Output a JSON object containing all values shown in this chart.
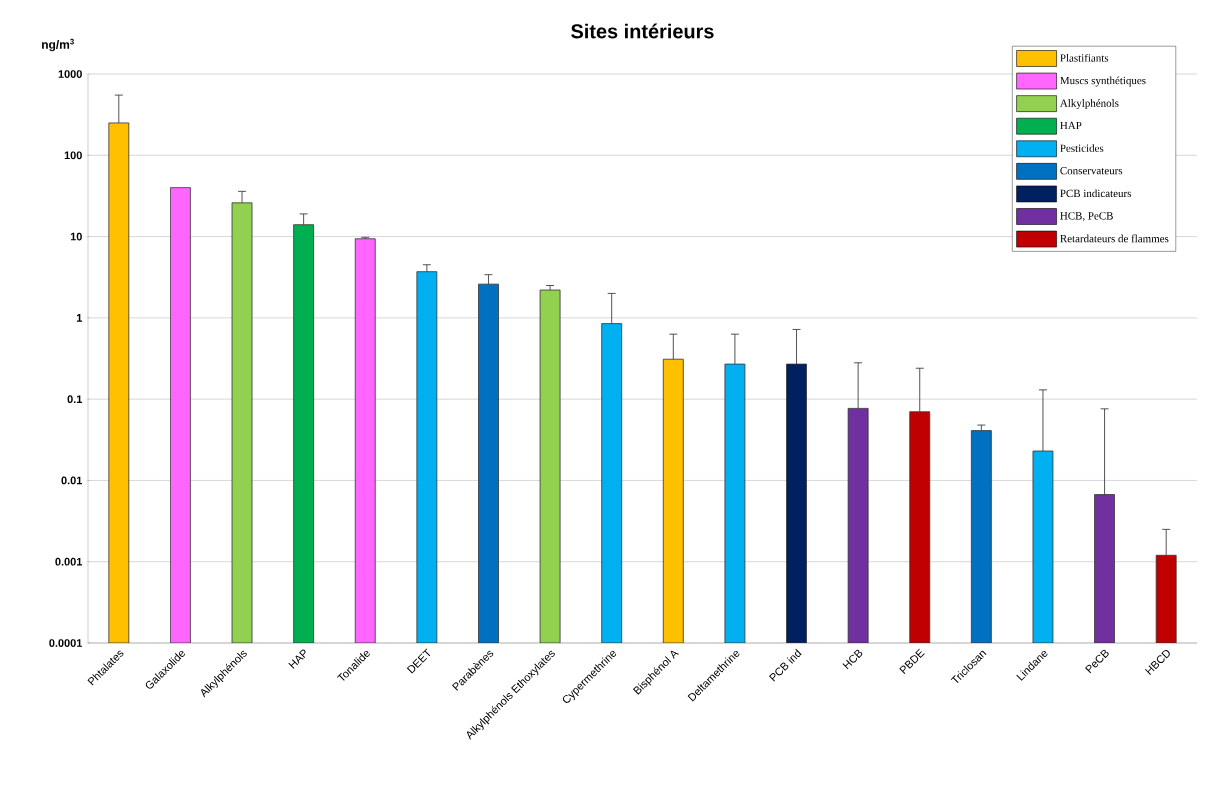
{
  "chart_data": {
    "type": "bar",
    "title": "Sites intérieurs",
    "ylabel": "ng/m$^{3}$",
    "categories": [
      "Phtalates",
      "Galaxolide",
      "Alkylphénols",
      "HAP",
      "Tonalide",
      "DEET",
      "Parabènes",
      "Alkylphénols Ethoxylates",
      "Cypermethrine",
      "Bisphénol A",
      "Deltamethrine",
      "PCB ind",
      "HCB",
      "PBDE",
      "Triclosan",
      "Lindane",
      "PeCB",
      "HBCD"
    ],
    "series": [
      {
        "name": "Plastifiants",
        "color": "#ffc000",
        "values": [
          250,
          null,
          null,
          null,
          null,
          null,
          null,
          null,
          null,
          0.31,
          null,
          null,
          null,
          null,
          null,
          null,
          null,
          null
        ],
        "errors": [
          [
            250,
            550
          ],
          null,
          null,
          null,
          null,
          null,
          null,
          null,
          null,
          [
            0.31,
            0.63
          ],
          null,
          null,
          null,
          null,
          null,
          null,
          null,
          null
        ]
      },
      {
        "name": "Muscs synthétiques",
        "color": "#ff66ff",
        "values": [
          null,
          40,
          null,
          null,
          9.4,
          null,
          null,
          null,
          null,
          null,
          null,
          null,
          null,
          null,
          null,
          null,
          null,
          null
        ],
        "errors": [
          null,
          null,
          null,
          null,
          [
            9.4,
            9.8
          ],
          null,
          null,
          null,
          null,
          null,
          null,
          null,
          null,
          null,
          null,
          null,
          null,
          null
        ]
      },
      {
        "name": "Alkylphénols",
        "color": "#92d050",
        "values": [
          null,
          null,
          26,
          null,
          null,
          null,
          null,
          2.2,
          null,
          null,
          null,
          null,
          null,
          null,
          null,
          null,
          null,
          null
        ],
        "errors": [
          null,
          null,
          [
            26,
            36
          ],
          null,
          null,
          null,
          null,
          [
            2.2,
            2.5
          ],
          null,
          null,
          null,
          null,
          null,
          null,
          null,
          null,
          null,
          null
        ]
      },
      {
        "name": "HAP",
        "color": "#00b050",
        "values": [
          null,
          null,
          null,
          14,
          null,
          null,
          null,
          null,
          null,
          null,
          null,
          null,
          null,
          null,
          null,
          null,
          null,
          null
        ],
        "errors": [
          null,
          null,
          null,
          [
            14,
            19
          ],
          null,
          null,
          null,
          null,
          null,
          null,
          null,
          null,
          null,
          null,
          null,
          null,
          null,
          null
        ]
      },
      {
        "name": "Pesticides",
        "color": "#00b0f0",
        "values": [
          null,
          null,
          null,
          null,
          null,
          3.7,
          null,
          null,
          0.85,
          null,
          0.27,
          null,
          null,
          null,
          null,
          0.023,
          null,
          null
        ],
        "errors": [
          null,
          null,
          null,
          null,
          null,
          [
            3.7,
            4.5
          ],
          null,
          null,
          [
            0.85,
            2.0
          ],
          null,
          [
            0.27,
            0.63
          ],
          null,
          null,
          null,
          null,
          [
            0.023,
            0.13
          ],
          null,
          null
        ]
      },
      {
        "name": "Conservateurs",
        "color": "#0070c0",
        "values": [
          null,
          null,
          null,
          null,
          null,
          null,
          2.6,
          null,
          null,
          null,
          null,
          null,
          null,
          null,
          0.041,
          null,
          null,
          null
        ],
        "errors": [
          null,
          null,
          null,
          null,
          null,
          null,
          [
            2.6,
            3.4
          ],
          null,
          null,
          null,
          null,
          null,
          null,
          null,
          [
            0.041,
            0.048
          ],
          null,
          null,
          null
        ]
      },
      {
        "name": "PCB indicateurs",
        "color": "#002060",
        "values": [
          null,
          null,
          null,
          null,
          null,
          null,
          null,
          null,
          null,
          null,
          null,
          0.27,
          null,
          null,
          null,
          null,
          null,
          null
        ],
        "errors": [
          null,
          null,
          null,
          null,
          null,
          null,
          null,
          null,
          null,
          null,
          null,
          [
            0.27,
            0.72
          ],
          null,
          null,
          null,
          null,
          null,
          null
        ]
      },
      {
        "name": "HCB, PeCB",
        "color": "#7030a0",
        "values": [
          null,
          null,
          null,
          null,
          null,
          null,
          null,
          null,
          null,
          null,
          null,
          null,
          0.077,
          null,
          null,
          null,
          0.0067,
          null
        ],
        "errors": [
          null,
          null,
          null,
          null,
          null,
          null,
          null,
          null,
          null,
          null,
          null,
          null,
          [
            0.077,
            0.28
          ],
          null,
          null,
          null,
          [
            0.0067,
            0.076
          ],
          null
        ]
      },
      {
        "name": "Retardateurs de flammes",
        "color": "#c00000",
        "values": [
          null,
          null,
          null,
          null,
          null,
          null,
          null,
          null,
          null,
          null,
          null,
          null,
          null,
          0.07,
          null,
          null,
          null,
          0.0012
        ],
        "errors": [
          null,
          null,
          null,
          null,
          null,
          null,
          null,
          null,
          null,
          null,
          null,
          null,
          null,
          [
            0.07,
            0.24
          ],
          null,
          null,
          null,
          [
            0.0012,
            0.0025
          ]
        ]
      }
    ],
    "log": true,
    "ylim": [
      0.0001,
      1000
    ],
    "yticks": [
      0.0001,
      0.001,
      0.01,
      0.1,
      1,
      10,
      100,
      1000
    ],
    "grid": "y",
    "legend": "top right"
  }
}
